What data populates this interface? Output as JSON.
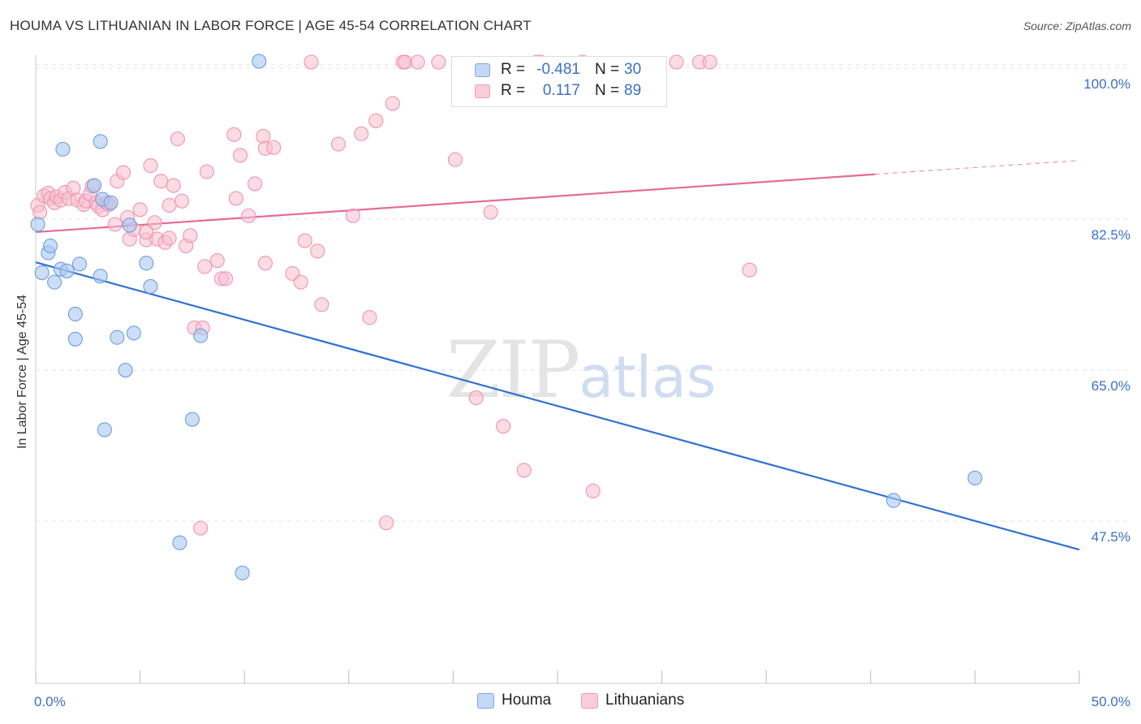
{
  "header": {
    "title": "HOUMA VS LITHUANIAN IN LABOR FORCE | AGE 45-54 CORRELATION CHART",
    "source": "Source: ZipAtlas.com"
  },
  "watermark": {
    "zip": "ZIP",
    "atlas": "atlas"
  },
  "legend": {
    "houma": {
      "r_label": "R =",
      "r_value": "-0.481",
      "n_label": "N =",
      "n_value": "30"
    },
    "lithuanians": {
      "r_label": "R =",
      "r_value": "0.117",
      "n_label": "N =",
      "n_value": "89"
    }
  },
  "bottom_legend": {
    "houma": "Houma",
    "lithuanians": "Lithuanians"
  },
  "colors": {
    "houma_fill": "#a9c8f0",
    "houma_stroke": "#6f9ee0",
    "houma_line": "#2f72d4",
    "lith_fill": "#f7bfd0",
    "lith_stroke": "#ef93b1",
    "lith_line": "#e36b96",
    "tick_text": "#3b6fc9",
    "grid": "#e3e3e3"
  },
  "chart_data": {
    "type": "scatter",
    "title": "HOUMA VS LITHUANIAN IN LABOR FORCE | AGE 45-54 CORRELATION CHART",
    "xlabel": "",
    "ylabel": "In Labor Force | Age 45-54",
    "xlim": [
      0,
      50
    ],
    "ylim": [
      28.7,
      101.5
    ],
    "x_tick_labels": [
      {
        "value": 0,
        "label": "0.0%"
      },
      {
        "value": 50,
        "label": "50.0%"
      }
    ],
    "y_tick_labels": [
      {
        "value": 47.5,
        "label": "47.5%"
      },
      {
        "value": 65.0,
        "label": "65.0%"
      },
      {
        "value": 82.5,
        "label": "82.5%"
      },
      {
        "value": 100.0,
        "label": "100.0%"
      }
    ],
    "grid": true,
    "series": [
      {
        "name": "Houma",
        "points": [
          [
            0.1,
            81.9
          ],
          [
            0.3,
            76.3
          ],
          [
            0.6,
            78.6
          ],
          [
            0.7,
            79.4
          ],
          [
            0.9,
            75.2
          ],
          [
            1.2,
            76.7
          ],
          [
            1.5,
            76.5
          ],
          [
            1.9,
            71.5
          ],
          [
            1.9,
            68.6
          ],
          [
            2.1,
            77.3
          ],
          [
            1.3,
            90.6
          ],
          [
            3.1,
            91.5
          ],
          [
            2.8,
            86.4
          ],
          [
            3.2,
            84.8
          ],
          [
            3.6,
            84.4
          ],
          [
            3.1,
            75.9
          ],
          [
            4.5,
            81.8
          ],
          [
            3.9,
            68.8
          ],
          [
            4.7,
            69.3
          ],
          [
            4.3,
            65.0
          ],
          [
            5.3,
            77.4
          ],
          [
            5.5,
            74.7
          ],
          [
            3.3,
            58.1
          ],
          [
            7.5,
            59.3
          ],
          [
            6.9,
            45.0
          ],
          [
            7.9,
            69.0
          ],
          [
            9.9,
            41.5
          ],
          [
            10.7,
            100.8
          ],
          [
            41.1,
            49.9
          ],
          [
            45.0,
            52.5
          ]
        ],
        "trend": {
          "x": [
            0,
            50
          ],
          "y": [
            77.5,
            44.2
          ]
        }
      },
      {
        "name": "Lithuanians",
        "points": [
          [
            0.1,
            84.1
          ],
          [
            0.2,
            83.3
          ],
          [
            0.4,
            85.2
          ],
          [
            0.6,
            85.5
          ],
          [
            0.7,
            84.9
          ],
          [
            0.9,
            84.4
          ],
          [
            1.0,
            85.1
          ],
          [
            1.2,
            84.7
          ],
          [
            1.4,
            85.6
          ],
          [
            1.6,
            84.9
          ],
          [
            1.8,
            86.1
          ],
          [
            2.0,
            84.7
          ],
          [
            2.3,
            84.2
          ],
          [
            2.4,
            84.6
          ],
          [
            2.6,
            85.4
          ],
          [
            2.7,
            86.3
          ],
          [
            2.9,
            84.4
          ],
          [
            3.0,
            84.0
          ],
          [
            3.2,
            83.6
          ],
          [
            3.4,
            84.4
          ],
          [
            3.5,
            84.2
          ],
          [
            3.8,
            81.9
          ],
          [
            3.9,
            86.9
          ],
          [
            4.2,
            87.9
          ],
          [
            4.4,
            82.7
          ],
          [
            4.5,
            80.2
          ],
          [
            4.7,
            81.3
          ],
          [
            5.0,
            83.6
          ],
          [
            5.3,
            80.1
          ],
          [
            5.5,
            88.7
          ],
          [
            5.7,
            82.1
          ],
          [
            5.8,
            80.2
          ],
          [
            6.0,
            86.9
          ],
          [
            6.2,
            79.8
          ],
          [
            6.4,
            80.3
          ],
          [
            6.6,
            86.4
          ],
          [
            6.8,
            91.8
          ],
          [
            7.0,
            84.6
          ],
          [
            7.2,
            79.4
          ],
          [
            7.4,
            80.6
          ],
          [
            7.6,
            69.9
          ],
          [
            8.0,
            69.9
          ],
          [
            8.2,
            88.0
          ],
          [
            8.7,
            77.7
          ],
          [
            8.9,
            75.6
          ],
          [
            9.1,
            75.6
          ],
          [
            9.5,
            92.3
          ],
          [
            9.6,
            84.9
          ],
          [
            9.8,
            89.9
          ],
          [
            10.2,
            82.9
          ],
          [
            10.5,
            86.6
          ],
          [
            11.0,
            77.4
          ],
          [
            10.9,
            92.1
          ],
          [
            11.0,
            90.7
          ],
          [
            11.4,
            90.8
          ],
          [
            12.3,
            76.2
          ],
          [
            12.7,
            75.2
          ],
          [
            12.9,
            80.0
          ],
          [
            13.2,
            100.7
          ],
          [
            13.5,
            78.8
          ],
          [
            13.7,
            72.6
          ],
          [
            14.5,
            91.2
          ],
          [
            15.2,
            82.9
          ],
          [
            15.6,
            92.4
          ],
          [
            16.0,
            71.1
          ],
          [
            16.3,
            93.9
          ],
          [
            16.8,
            47.3
          ],
          [
            17.1,
            95.9
          ],
          [
            17.6,
            100.7
          ],
          [
            17.7,
            100.7
          ],
          [
            18.3,
            100.7
          ],
          [
            19.3,
            100.7
          ],
          [
            20.1,
            89.4
          ],
          [
            21.1,
            61.8
          ],
          [
            21.8,
            83.3
          ],
          [
            22.4,
            58.5
          ],
          [
            23.4,
            53.4
          ],
          [
            24.0,
            100.7
          ],
          [
            26.2,
            100.7
          ],
          [
            26.7,
            51.0
          ],
          [
            30.7,
            100.7
          ],
          [
            31.8,
            100.7
          ],
          [
            32.3,
            100.7
          ],
          [
            34.2,
            76.6
          ],
          [
            24.2,
            100.7
          ],
          [
            6.4,
            84.1
          ],
          [
            8.1,
            77.0
          ],
          [
            5.3,
            81.0
          ],
          [
            7.9,
            46.7
          ]
        ],
        "trend": {
          "x": [
            0,
            40.2
          ],
          "y": [
            81.0,
            87.7
          ]
        },
        "trend_dashed": {
          "x": [
            40.2,
            50
          ],
          "y": [
            87.7,
            89.3
          ]
        }
      }
    ]
  }
}
